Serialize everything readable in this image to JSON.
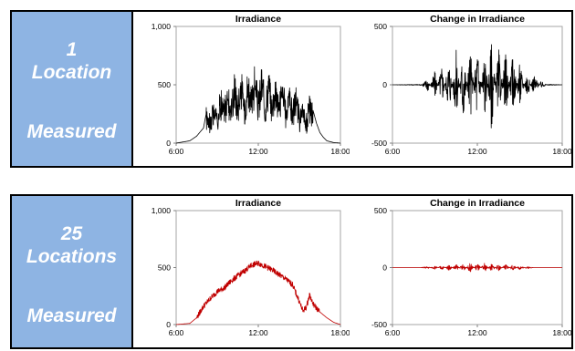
{
  "rows": [
    {
      "count": "1",
      "location_label": "Location",
      "measured_label": "Measured"
    },
    {
      "count": "25",
      "location_label": "Locations",
      "measured_label": "Measured"
    }
  ],
  "colors": {
    "label_panel": "#8eb4e3",
    "single_series": "#000000",
    "aggregate_series": "#c00000"
  },
  "chart_data": [
    {
      "type": "line",
      "title": "Irradiance",
      "xlabel": "",
      "ylabel": "",
      "x_ticks": [
        "6:00",
        "12:00",
        "18:00"
      ],
      "xlim": [
        "6:00",
        "18:00"
      ],
      "y_ticks": [
        "0",
        "500",
        "1,000"
      ],
      "ylim": [
        0,
        1000
      ],
      "series": [
        {
          "color": "#000000",
          "x": [
            "6:00",
            "7:00",
            "7:30",
            "8:00",
            "8:15",
            "8:30",
            "8:45",
            "9:00",
            "9:15",
            "9:30",
            "9:45",
            "10:00",
            "10:15",
            "10:30",
            "10:45",
            "11:00",
            "11:15",
            "11:30",
            "11:45",
            "12:00",
            "12:15",
            "12:30",
            "12:45",
            "13:00",
            "13:15",
            "13:30",
            "13:45",
            "14:00",
            "14:15",
            "14:30",
            "14:45",
            "15:00",
            "15:15",
            "15:30",
            "15:45",
            "16:00",
            "16:15",
            "16:30",
            "16:45",
            "17:00",
            "17:30",
            "18:00"
          ],
          "y": [
            0,
            20,
            60,
            130,
            290,
            200,
            330,
            250,
            420,
            300,
            500,
            320,
            560,
            380,
            600,
            350,
            620,
            400,
            640,
            380,
            630,
            360,
            610,
            350,
            600,
            330,
            590,
            300,
            520,
            280,
            450,
            240,
            280,
            200,
            360,
            280,
            170,
            90,
            50,
            20,
            5,
            0
          ]
        }
      ]
    },
    {
      "type": "line",
      "title": "Change in Irradiance",
      "xlabel": "",
      "ylabel": "",
      "x_ticks": [
        "6:00",
        "12:00",
        "18:00"
      ],
      "xlim": [
        "6:00",
        "18:00"
      ],
      "y_ticks": [
        "-500",
        "0",
        "500"
      ],
      "ylim": [
        -500,
        500
      ],
      "series": [
        {
          "color": "#000000",
          "x": [
            "6:00",
            "8:00",
            "8:30",
            "9:00",
            "9:30",
            "10:00",
            "10:30",
            "11:00",
            "11:30",
            "12:00",
            "12:30",
            "13:00",
            "13:30",
            "14:00",
            "14:30",
            "15:00",
            "15:30",
            "16:00",
            "16:30",
            "17:00",
            "18:00"
          ],
          "y": [
            0,
            5,
            -60,
            120,
            -180,
            250,
            -300,
            350,
            -330,
            380,
            -350,
            400,
            -320,
            300,
            -260,
            200,
            -120,
            90,
            -30,
            5,
            0
          ]
        }
      ]
    },
    {
      "type": "line",
      "title": "Irradiance",
      "xlabel": "",
      "ylabel": "",
      "x_ticks": [
        "6:00",
        "12:00",
        "18:00"
      ],
      "xlim": [
        "6:00",
        "18:00"
      ],
      "y_ticks": [
        "0",
        "500",
        "1,000"
      ],
      "ylim": [
        0,
        1000
      ],
      "series": [
        {
          "color": "#c00000",
          "x": [
            "6:00",
            "7:00",
            "7:30",
            "8:00",
            "8:30",
            "9:00",
            "9:30",
            "10:00",
            "10:30",
            "11:00",
            "11:30",
            "12:00",
            "12:30",
            "13:00",
            "13:30",
            "14:00",
            "14:30",
            "15:00",
            "15:15",
            "15:30",
            "15:45",
            "16:00",
            "16:30",
            "17:00",
            "17:30",
            "18:00"
          ],
          "y": [
            0,
            10,
            60,
            160,
            230,
            290,
            320,
            380,
            430,
            470,
            520,
            540,
            510,
            480,
            440,
            400,
            350,
            200,
            120,
            150,
            260,
            180,
            110,
            60,
            20,
            0
          ]
        }
      ]
    },
    {
      "type": "line",
      "title": "Change in Irradiance",
      "xlabel": "",
      "ylabel": "",
      "x_ticks": [
        "6:00",
        "12:00",
        "18:00"
      ],
      "xlim": [
        "6:00",
        "18:00"
      ],
      "y_ticks": [
        "-500",
        "0",
        "500"
      ],
      "ylim": [
        -500,
        500
      ],
      "series": [
        {
          "color": "#c00000",
          "x": [
            "6:00",
            "8:00",
            "8:30",
            "9:00",
            "9:30",
            "10:00",
            "10:30",
            "11:00",
            "11:30",
            "12:00",
            "12:30",
            "13:00",
            "13:30",
            "14:00",
            "14:30",
            "15:00",
            "15:30",
            "16:00",
            "18:00"
          ],
          "y": [
            0,
            0,
            -10,
            15,
            -20,
            25,
            -30,
            35,
            -40,
            40,
            -40,
            35,
            -30,
            30,
            -25,
            20,
            -10,
            0,
            0
          ]
        }
      ]
    }
  ]
}
